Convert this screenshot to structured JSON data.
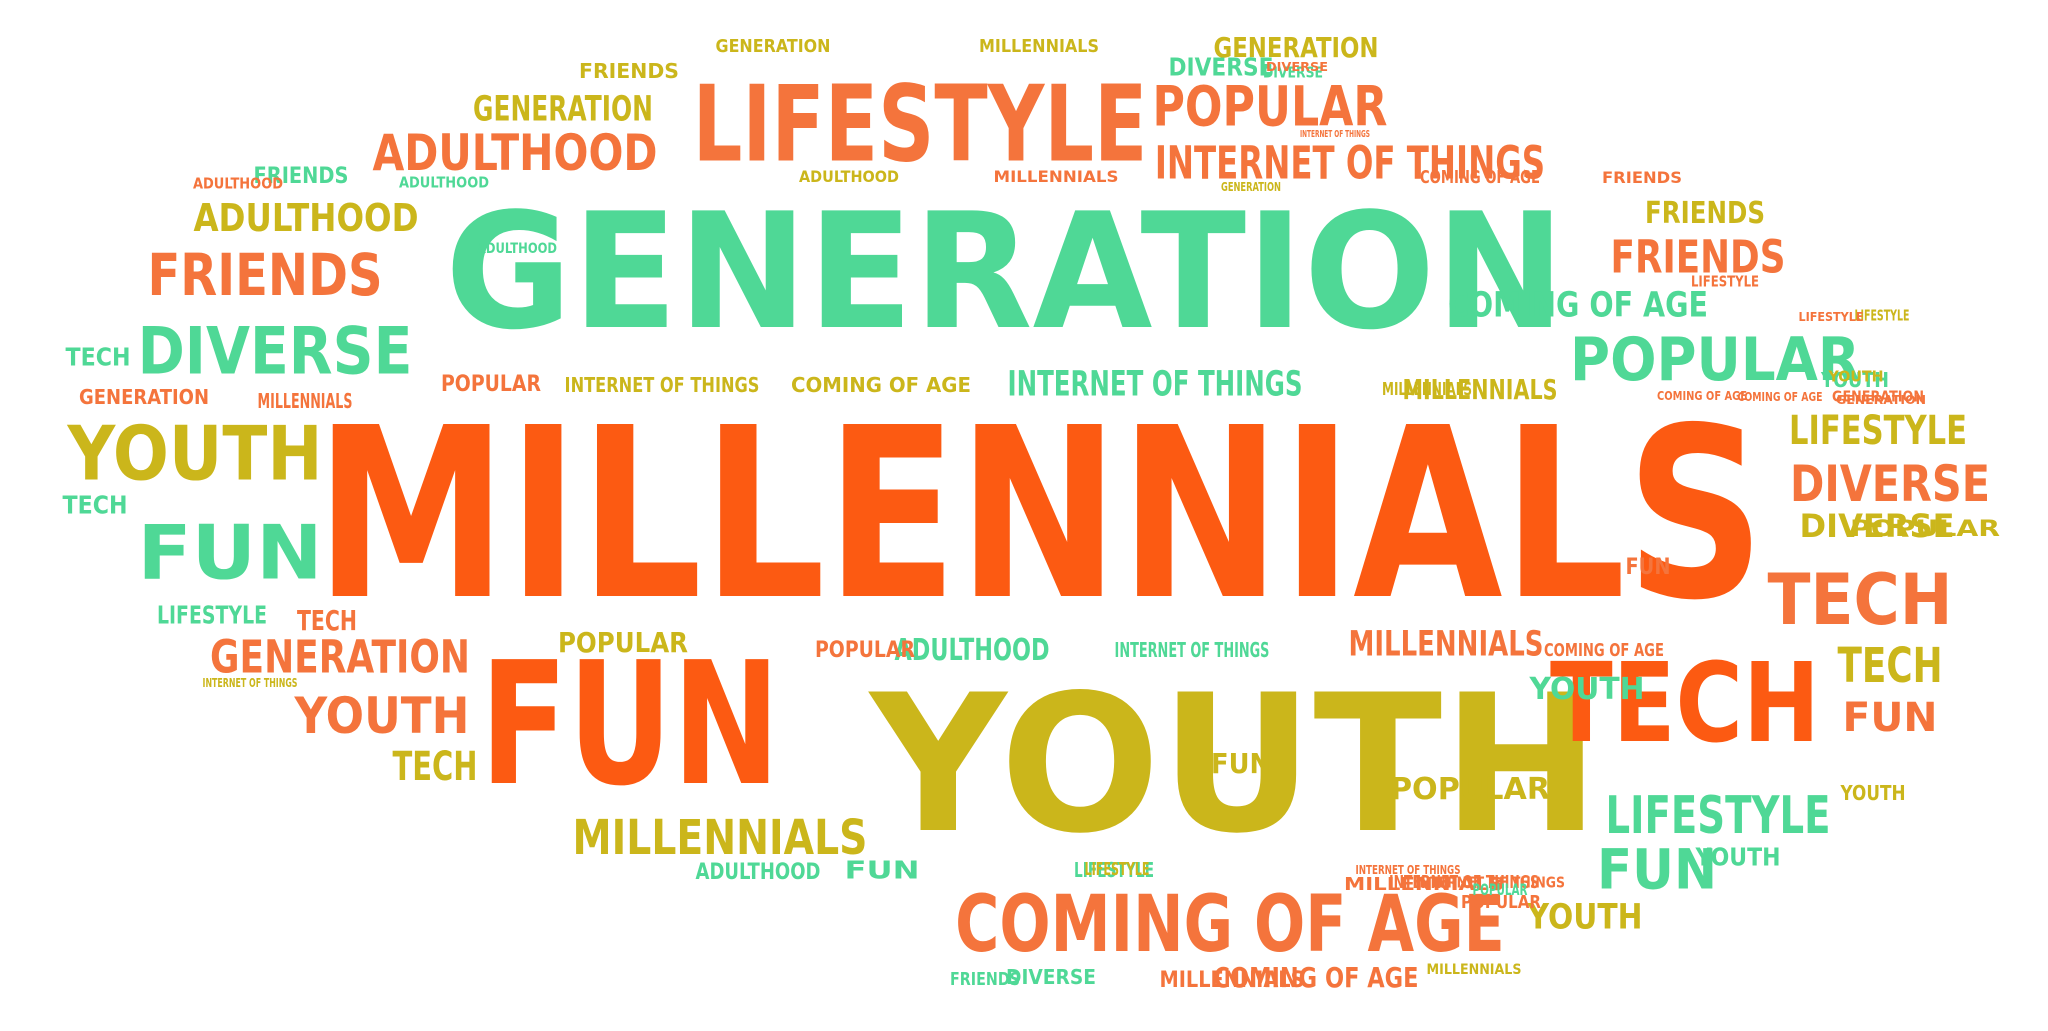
{
  "colors": {
    "orange_red": "#fc5a12",
    "orange": "#f4743c",
    "mint": "#4fd896",
    "mustard": "#cbb61b",
    "background": "#ffffff"
  },
  "words": [
    {
      "text": "MILLENNIALS",
      "color": "orange_red"
    },
    {
      "text": "GENERATION",
      "color": "mint"
    },
    {
      "text": "YOUTH",
      "color": "mustard"
    },
    {
      "text": "FUN",
      "color": "orange_red"
    },
    {
      "text": "LIFESTYLE",
      "color": "orange"
    },
    {
      "text": "TECH",
      "color": "orange_red"
    },
    {
      "text": "COMING OF AGE",
      "color": "orange"
    },
    {
      "text": "POPULAR",
      "color": "mint"
    },
    {
      "text": "DIVERSE",
      "color": "mint"
    },
    {
      "text": "YOUTH",
      "color": "mustard"
    },
    {
      "text": "FUN",
      "color": "mint"
    },
    {
      "text": "FRIENDS",
      "color": "orange"
    },
    {
      "text": "ADULTHOOD",
      "color": "orange"
    },
    {
      "text": "POPULAR",
      "color": "orange"
    },
    {
      "text": "INTERNET OF THINGS",
      "color": "orange"
    },
    {
      "text": "TECH",
      "color": "orange"
    },
    {
      "text": "LIFESTYLE",
      "color": "mint"
    },
    {
      "text": "DIVERSE",
      "color": "orange"
    },
    {
      "text": "MILLENNIALS",
      "color": "mustard"
    },
    {
      "text": "FUN",
      "color": "mint"
    },
    {
      "text": "GENERATION",
      "color": "orange"
    },
    {
      "text": "YOUTH",
      "color": "orange"
    },
    {
      "text": "FRIENDS",
      "color": "orange"
    },
    {
      "text": "ADULTHOOD",
      "color": "mustard"
    },
    {
      "text": "GENERATION",
      "color": "mustard"
    },
    {
      "text": "COMING OF AGE",
      "color": "mint"
    },
    {
      "text": "LIFESTYLE",
      "color": "mustard"
    },
    {
      "text": "TECH",
      "color": "mustard"
    },
    {
      "text": "FUN",
      "color": "orange"
    },
    {
      "text": "INTERNET OF THINGS",
      "color": "mint"
    },
    {
      "text": "DIVERSE",
      "color": "mustard"
    },
    {
      "text": "MILLENNIALS",
      "color": "orange"
    },
    {
      "text": "POPULAR",
      "color": "mustard"
    },
    {
      "text": "YOUTH",
      "color": "mustard"
    },
    {
      "text": "TECH",
      "color": "mustard"
    },
    {
      "text": "FRIENDS",
      "color": "mustard"
    },
    {
      "text": "ADULTHOOD",
      "color": "mint"
    },
    {
      "text": "YOUTH",
      "color": "mint"
    },
    {
      "text": "POPULAR",
      "color": "mustard"
    },
    {
      "text": "TECH",
      "color": "orange"
    },
    {
      "text": "MILLENNIALS",
      "color": "mustard"
    },
    {
      "text": "FUN",
      "color": "mustard"
    },
    {
      "text": "YOUTH",
      "color": "mint"
    },
    {
      "text": "FUN",
      "color": "mint"
    },
    {
      "text": "COMING OF AGE",
      "color": "orange"
    },
    {
      "text": "GENERATION",
      "color": "mustard"
    },
    {
      "text": "TECH",
      "color": "mint"
    },
    {
      "text": "TECH",
      "color": "mint"
    },
    {
      "text": "DIVERSE",
      "color": "mint"
    },
    {
      "text": "DIVERSE",
      "color": "mint"
    },
    {
      "text": "LIFESTYLE",
      "color": "mint"
    },
    {
      "text": "YOUTH",
      "color": "mustard"
    },
    {
      "text": "FRIENDS",
      "color": "mint"
    },
    {
      "text": "POPULAR",
      "color": "orange"
    },
    {
      "text": "INTERNET OF THINGS",
      "color": "mustard"
    },
    {
      "text": "COMING OF AGE",
      "color": "mustard"
    },
    {
      "text": "LIFESTYLE",
      "color": "orange"
    },
    {
      "text": "GENERATION",
      "color": "orange"
    },
    {
      "text": "MILLENNIALS",
      "color": "orange"
    },
    {
      "text": "FRIENDS",
      "color": "mustard"
    },
    {
      "text": "POPULAR",
      "color": "mustard"
    },
    {
      "text": "POPULAR",
      "color": "orange"
    },
    {
      "text": "FUN",
      "color": "orange"
    },
    {
      "text": "YOUTH",
      "color": "mint"
    },
    {
      "text": "LIFESTYLE",
      "color": "mint"
    },
    {
      "text": "DIVERSE",
      "color": "mint"
    },
    {
      "text": "ADULTHOOD",
      "color": "mint"
    },
    {
      "text": "MILLENNIALS",
      "color": "mustard"
    },
    {
      "text": "LIFESTYLE",
      "color": "mustard"
    },
    {
      "text": "ADULTHOOD",
      "color": "orange"
    },
    {
      "text": "INTERNET OF THINGS",
      "color": "orange"
    },
    {
      "text": "POPULAR",
      "color": "orange"
    },
    {
      "text": "COMING OF AGE",
      "color": "orange"
    },
    {
      "text": "INTERNET OF THINGS",
      "color": "mint"
    },
    {
      "text": "COMING OF AGE",
      "color": "orange"
    },
    {
      "text": "YOUTH",
      "color": "mustard"
    },
    {
      "text": "FRIENDS",
      "color": "mint"
    },
    {
      "text": "MILLENNIALS",
      "color": "orange"
    },
    {
      "text": "ADULTHOOD",
      "color": "mint"
    },
    {
      "text": "INTERNET OF THINGS",
      "color": "orange"
    },
    {
      "text": "GENERATION",
      "color": "orange"
    },
    {
      "text": "COMING OF AGE",
      "color": "orange"
    },
    {
      "text": "COMING OF AGE",
      "color": "orange"
    },
    {
      "text": "GENERATION",
      "color": "mustard"
    },
    {
      "text": "LIFESTYLE",
      "color": "mustard"
    },
    {
      "text": "LIFESTYLE",
      "color": "orange"
    },
    {
      "text": "MILLENNIALS",
      "color": "mustard"
    },
    {
      "text": "ADULTHOOD",
      "color": "mustard"
    },
    {
      "text": "MILLENNIALS",
      "color": "orange"
    },
    {
      "text": "DIVERSE",
      "color": "orange"
    },
    {
      "text": "ADULTHOOD",
      "color": "mint"
    },
    {
      "text": "INTERNET OF THINGS",
      "color": "mustard"
    },
    {
      "text": "GENERATION",
      "color": "mustard"
    },
    {
      "text": "GENERATION",
      "color": "orange"
    },
    {
      "text": "MILLENNIALS",
      "color": "orange"
    },
    {
      "text": "POPULAR",
      "color": "mint"
    },
    {
      "text": "FRIENDS",
      "color": "orange"
    },
    {
      "text": "INTERNET OF THINGS",
      "color": "orange"
    },
    {
      "text": "MILLENNIALS",
      "color": "mustard"
    },
    {
      "text": "INTERNET OF THINGS",
      "color": "orange"
    }
  ]
}
